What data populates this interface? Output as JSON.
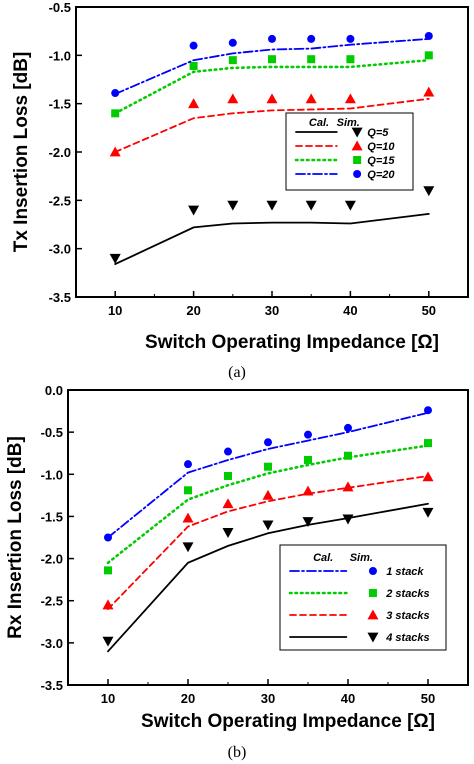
{
  "chart_data": [
    {
      "type": "line",
      "caption": "(a)",
      "xlabel": "Switch Operating Impedance [Ω]",
      "ylabel": "Tx Insertion Loss [dB]",
      "xlim": [
        5,
        55
      ],
      "ylim": [
        -3.5,
        -0.5
      ],
      "xticks": [
        "10",
        "20",
        "30",
        "40",
        "50"
      ],
      "yticks": [
        "-0.5",
        "-1.0",
        "-1.5",
        "-2.0",
        "-2.5",
        "-3.0",
        "-3.5"
      ],
      "legend": {
        "placement": "right-middle",
        "col_calc": "Cal.",
        "col_sim": "Sim."
      },
      "series": [
        {
          "name": "Q=5",
          "color": "#000000",
          "dash": "solid",
          "marker": "triangle-down",
          "calc": {
            "x": [
              10,
              20,
              25,
              30,
              35,
              40,
              50
            ],
            "y": [
              -3.16,
              -2.78,
              -2.74,
              -2.73,
              -2.73,
              -2.74,
              -2.64
            ]
          },
          "sim": {
            "x": [
              10,
              20,
              25,
              30,
              35,
              40,
              50
            ],
            "y": [
              -3.1,
              -2.6,
              -2.55,
              -2.55,
              -2.55,
              -2.55,
              -2.4
            ]
          }
        },
        {
          "name": "Q=10",
          "color": "#ff0000",
          "dash": "dash",
          "marker": "triangle-up",
          "calc": {
            "x": [
              10,
              20,
              25,
              30,
              35,
              40,
              50
            ],
            "y": [
              -2.0,
              -1.65,
              -1.6,
              -1.57,
              -1.56,
              -1.55,
              -1.45
            ]
          },
          "sim": {
            "x": [
              10,
              20,
              25,
              30,
              35,
              40,
              50
            ],
            "y": [
              -2.0,
              -1.5,
              -1.45,
              -1.45,
              -1.45,
              -1.45,
              -1.38
            ]
          }
        },
        {
          "name": "Q=15",
          "color": "#00cc00",
          "dash": "dot",
          "marker": "square",
          "calc": {
            "x": [
              10,
              20,
              25,
              30,
              35,
              40,
              50
            ],
            "y": [
              -1.6,
              -1.17,
              -1.13,
              -1.12,
              -1.12,
              -1.12,
              -1.05
            ]
          },
          "sim": {
            "x": [
              10,
              20,
              25,
              30,
              35,
              40,
              50
            ],
            "y": [
              -1.6,
              -1.11,
              -1.05,
              -1.04,
              -1.04,
              -1.04,
              -1.0
            ]
          }
        },
        {
          "name": "Q=20",
          "color": "#0000ff",
          "dash": "dashdot",
          "marker": "circle",
          "calc": {
            "x": [
              10,
              20,
              25,
              30,
              35,
              40,
              50
            ],
            "y": [
              -1.4,
              -1.05,
              -0.98,
              -0.94,
              -0.93,
              -0.89,
              -0.83
            ]
          },
          "sim": {
            "x": [
              10,
              20,
              25,
              30,
              35,
              40,
              50
            ],
            "y": [
              -1.39,
              -0.9,
              -0.87,
              -0.83,
              -0.83,
              -0.83,
              -0.8
            ]
          }
        }
      ]
    },
    {
      "type": "line",
      "caption": "(b)",
      "xlabel": "Switch Operating Impedance [Ω]",
      "ylabel": "Rx Insertion Loss [dB]",
      "xlim": [
        5,
        55
      ],
      "ylim": [
        -3.5,
        0.0
      ],
      "xticks": [
        "10",
        "20",
        "30",
        "40",
        "50"
      ],
      "yticks": [
        "0.0",
        "-0.5",
        "-1.0",
        "-1.5",
        "-2.0",
        "-2.5",
        "-3.0",
        "-3.5"
      ],
      "legend": {
        "placement": "bottom-right",
        "col_calc": "Cal.",
        "col_sim": "Sim."
      },
      "series": [
        {
          "name": "1 stack",
          "color": "#0000ff",
          "dash": "dashdot",
          "marker": "circle",
          "calc": {
            "x": [
              10,
              20,
              25,
              30,
              35,
              40,
              50
            ],
            "y": [
              -1.75,
              -0.98,
              -0.83,
              -0.7,
              -0.6,
              -0.5,
              -0.27
            ]
          },
          "sim": {
            "x": [
              10,
              20,
              25,
              30,
              35,
              40,
              50
            ],
            "y": [
              -1.75,
              -0.88,
              -0.73,
              -0.62,
              -0.53,
              -0.45,
              -0.24
            ]
          }
        },
        {
          "name": "2 stacks",
          "color": "#00cc00",
          "dash": "dot",
          "marker": "square",
          "calc": {
            "x": [
              10,
              20,
              25,
              30,
              35,
              40,
              50
            ],
            "y": [
              -2.05,
              -1.3,
              -1.13,
              -0.99,
              -0.89,
              -0.8,
              -0.66
            ]
          },
          "sim": {
            "x": [
              10,
              20,
              25,
              30,
              35,
              40,
              50
            ],
            "y": [
              -2.14,
              -1.19,
              -1.02,
              -0.91,
              -0.83,
              -0.78,
              -0.63
            ]
          }
        },
        {
          "name": "3 stacks",
          "color": "#ff0000",
          "dash": "dash",
          "marker": "triangle-up",
          "calc": {
            "x": [
              10,
              20,
              25,
              30,
              35,
              40,
              50
            ],
            "y": [
              -2.6,
              -1.62,
              -1.44,
              -1.32,
              -1.23,
              -1.16,
              -1.02
            ]
          },
          "sim": {
            "x": [
              10,
              20,
              25,
              30,
              35,
              40,
              50
            ],
            "y": [
              -2.55,
              -1.52,
              -1.35,
              -1.25,
              -1.2,
              -1.15,
              -1.03
            ]
          }
        },
        {
          "name": "4 stacks",
          "color": "#000000",
          "dash": "solid",
          "marker": "triangle-down",
          "calc": {
            "x": [
              10,
              20,
              25,
              30,
              35,
              40,
              50
            ],
            "y": [
              -3.1,
              -2.05,
              -1.85,
              -1.7,
              -1.6,
              -1.52,
              -1.35
            ]
          },
          "sim": {
            "x": [
              10,
              20,
              25,
              30,
              35,
              40,
              50
            ],
            "y": [
              -2.98,
              -1.86,
              -1.69,
              -1.6,
              -1.56,
              -1.53,
              -1.45
            ]
          }
        }
      ]
    }
  ]
}
